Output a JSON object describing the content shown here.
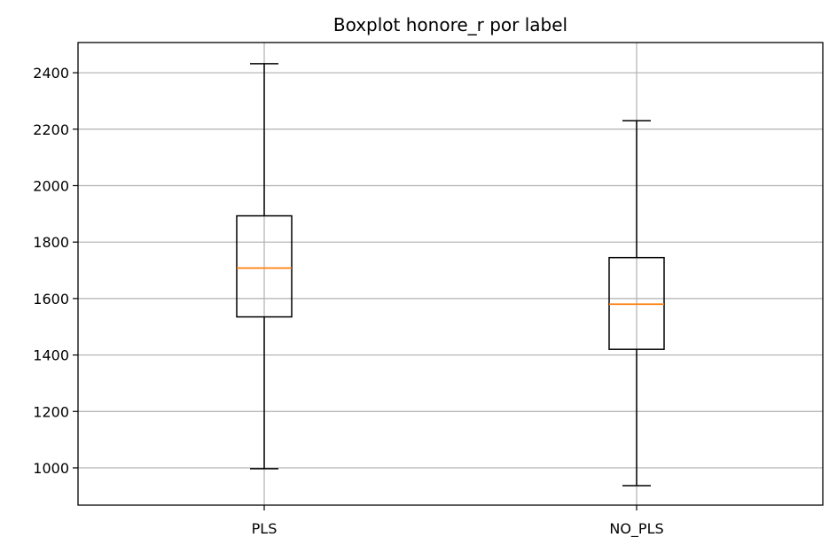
{
  "chart_data": {
    "type": "boxplot",
    "title": "Boxplot honore_r por label",
    "xlabel": "",
    "ylabel": "",
    "categories": [
      "PLS",
      "NO_PLS"
    ],
    "boxes": [
      {
        "category": "PLS",
        "whisker_low": 997,
        "q1": 1535,
        "median": 1708,
        "q3": 1893,
        "whisker_high": 2432
      },
      {
        "category": "NO_PLS",
        "whisker_low": 937,
        "q1": 1420,
        "median": 1580,
        "q3": 1745,
        "whisker_high": 2230
      }
    ],
    "ylim": [
      868,
      2507
    ],
    "yticks": [
      1000,
      1200,
      1400,
      1600,
      1800,
      2000,
      2200,
      2400
    ],
    "grid": true,
    "colors": {
      "box": "#000000",
      "median": "#ff7f0e",
      "grid": "#b0b0b0"
    }
  }
}
